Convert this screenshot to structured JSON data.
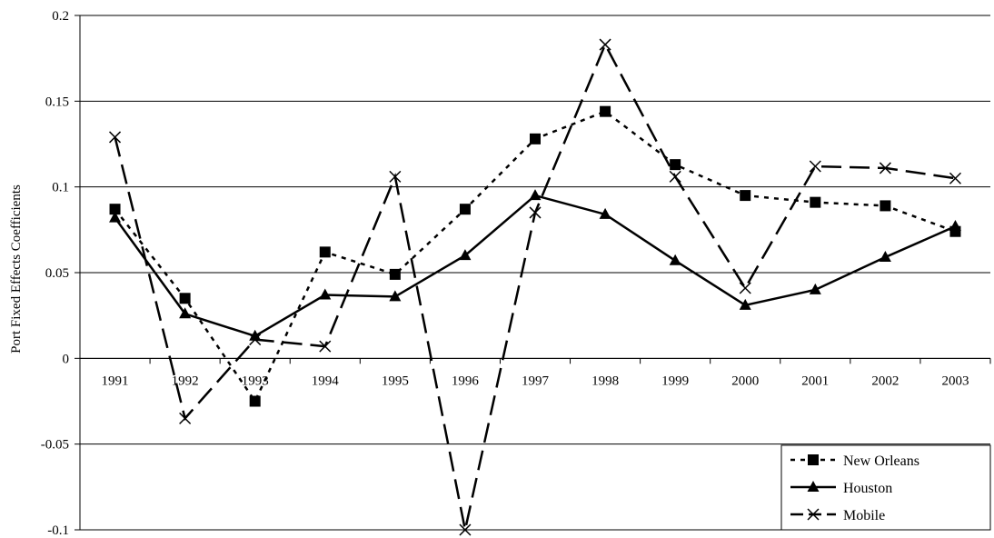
{
  "chart_data": {
    "type": "line",
    "title": "",
    "xlabel": "",
    "ylabel": "Port Fixed Effects Coefficients",
    "categories": [
      "1991",
      "1992",
      "1993",
      "1994",
      "1995",
      "1996",
      "1997",
      "1998",
      "1999",
      "2000",
      "2001",
      "2002",
      "2003"
    ],
    "ylim": [
      -0.1,
      0.2
    ],
    "yticks": [
      -0.1,
      -0.05,
      0,
      0.05,
      0.1,
      0.15,
      0.2
    ],
    "ytick_labels": [
      "-0.1",
      "-0.05",
      "0",
      "0.05",
      "0.1",
      "0.15",
      "0.2"
    ],
    "grid": true,
    "legend_position": "bottom-right",
    "series": [
      {
        "name": "New Orleans",
        "line_style": "dotted",
        "marker": "square",
        "color": "#000000",
        "values": [
          0.087,
          0.035,
          -0.025,
          0.062,
          0.049,
          0.087,
          0.128,
          0.144,
          0.113,
          0.095,
          0.091,
          0.089,
          0.074
        ]
      },
      {
        "name": "Houston",
        "line_style": "solid",
        "marker": "triangle",
        "color": "#000000",
        "values": [
          0.082,
          0.026,
          0.013,
          0.037,
          0.036,
          0.06,
          0.095,
          0.084,
          0.057,
          0.031,
          0.04,
          0.059,
          0.077
        ]
      },
      {
        "name": "Mobile",
        "line_style": "dashed",
        "marker": "x",
        "color": "#000000",
        "values": [
          0.129,
          -0.035,
          0.011,
          0.007,
          0.106,
          -0.1,
          0.085,
          0.183,
          0.106,
          0.041,
          0.112,
          0.111,
          0.105
        ]
      }
    ]
  }
}
